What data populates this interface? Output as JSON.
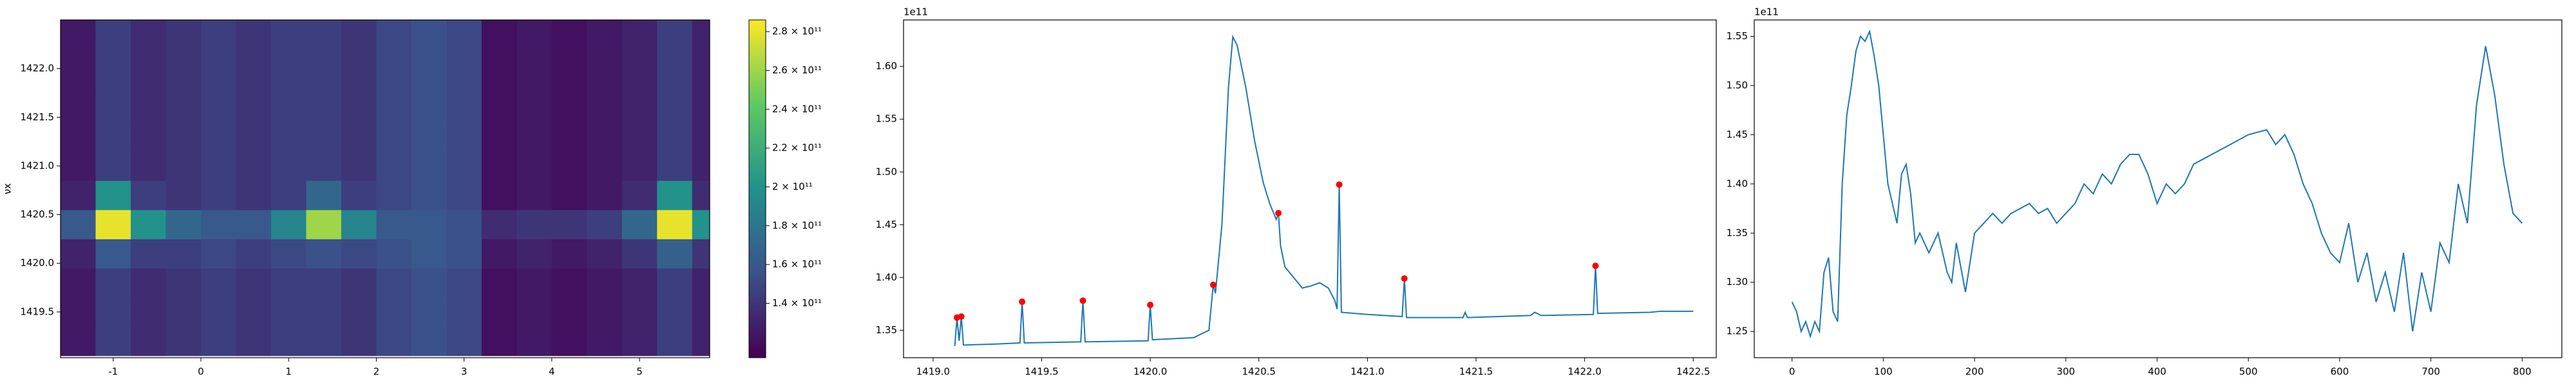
{
  "chart_data": [
    {
      "type": "heatmap",
      "ylabel": "νx",
      "colormap": "viridis",
      "xlim": [
        -1.6,
        5.8
      ],
      "ylim": [
        1419.03,
        1422.5
      ],
      "xticks": [
        -1,
        0,
        1,
        2,
        3,
        4,
        5
      ],
      "yticks": [
        1419.5,
        {
          "value": 1420,
          "label": "1420.0"
        },
        1420.5,
        {
          "value": 1421,
          "label": "1421.0"
        },
        1421.5,
        {
          "value": 1422,
          "label": "1422.0"
        }
      ],
      "x": [
        -1.4,
        -1.0,
        -0.6,
        -0.2,
        0.2,
        0.6,
        1.0,
        1.4,
        1.8,
        2.2,
        2.6,
        3.0,
        3.4,
        3.8,
        4.2,
        4.6,
        5.0,
        5.4,
        5.8
      ],
      "y": [
        1419.2,
        1419.5,
        1419.8,
        1420.1,
        1420.4,
        1420.7,
        1421.0,
        1421.3,
        1421.6,
        1421.9,
        1422.2,
        1422.5
      ],
      "z": [
        [
          125000000000.0,
          145000000000.0,
          135000000000.0,
          140000000000.0,
          145000000000.0,
          140000000000.0,
          145000000000.0,
          145000000000.0,
          140000000000.0,
          150000000000.0,
          155000000000.0,
          150000000000.0,
          120000000000.0,
          125000000000.0,
          120000000000.0,
          125000000000.0,
          130000000000.0,
          145000000000.0,
          130000000000.0
        ],
        [
          125000000000.0,
          145000000000.0,
          135000000000.0,
          140000000000.0,
          145000000000.0,
          140000000000.0,
          145000000000.0,
          145000000000.0,
          140000000000.0,
          150000000000.0,
          155000000000.0,
          150000000000.0,
          120000000000.0,
          125000000000.0,
          120000000000.0,
          125000000000.0,
          130000000000.0,
          145000000000.0,
          130000000000.0
        ],
        [
          125000000000.0,
          145000000000.0,
          135000000000.0,
          140000000000.0,
          145000000000.0,
          140000000000.0,
          145000000000.0,
          145000000000.0,
          140000000000.0,
          150000000000.0,
          155000000000.0,
          150000000000.0,
          120000000000.0,
          125000000000.0,
          120000000000.0,
          125000000000.0,
          130000000000.0,
          145000000000.0,
          130000000000.0
        ],
        [
          130000000000.0,
          160000000000.0,
          145000000000.0,
          145000000000.0,
          150000000000.0,
          145000000000.0,
          150000000000.0,
          155000000000.0,
          150000000000.0,
          155000000000.0,
          160000000000.0,
          155000000000.0,
          125000000000.0,
          130000000000.0,
          125000000000.0,
          130000000000.0,
          140000000000.0,
          165000000000.0,
          140000000000.0
        ],
        [
          160000000000.0,
          280000000000.0,
          200000000000.0,
          170000000000.0,
          160000000000.0,
          160000000000.0,
          190000000000.0,
          260000000000.0,
          190000000000.0,
          160000000000.0,
          160000000000.0,
          155000000000.0,
          135000000000.0,
          140000000000.0,
          140000000000.0,
          145000000000.0,
          170000000000.0,
          280000000000.0,
          200000000000.0
        ],
        [
          130000000000.0,
          200000000000.0,
          145000000000.0,
          140000000000.0,
          145000000000.0,
          140000000000.0,
          145000000000.0,
          170000000000.0,
          145000000000.0,
          150000000000.0,
          155000000000.0,
          150000000000.0,
          120000000000.0,
          125000000000.0,
          120000000000.0,
          125000000000.0,
          135000000000.0,
          200000000000.0,
          135000000000.0
        ],
        [
          125000000000.0,
          145000000000.0,
          135000000000.0,
          140000000000.0,
          145000000000.0,
          140000000000.0,
          145000000000.0,
          145000000000.0,
          140000000000.0,
          150000000000.0,
          155000000000.0,
          150000000000.0,
          120000000000.0,
          125000000000.0,
          120000000000.0,
          125000000000.0,
          130000000000.0,
          145000000000.0,
          130000000000.0
        ],
        [
          125000000000.0,
          145000000000.0,
          135000000000.0,
          140000000000.0,
          145000000000.0,
          140000000000.0,
          145000000000.0,
          145000000000.0,
          140000000000.0,
          150000000000.0,
          155000000000.0,
          150000000000.0,
          120000000000.0,
          125000000000.0,
          120000000000.0,
          125000000000.0,
          130000000000.0,
          145000000000.0,
          130000000000.0
        ],
        [
          125000000000.0,
          145000000000.0,
          135000000000.0,
          140000000000.0,
          145000000000.0,
          140000000000.0,
          145000000000.0,
          145000000000.0,
          140000000000.0,
          150000000000.0,
          155000000000.0,
          150000000000.0,
          120000000000.0,
          125000000000.0,
          120000000000.0,
          125000000000.0,
          130000000000.0,
          145000000000.0,
          130000000000.0
        ],
        [
          125000000000.0,
          145000000000.0,
          135000000000.0,
          140000000000.0,
          145000000000.0,
          140000000000.0,
          145000000000.0,
          145000000000.0,
          140000000000.0,
          150000000000.0,
          155000000000.0,
          150000000000.0,
          120000000000.0,
          125000000000.0,
          120000000000.0,
          125000000000.0,
          130000000000.0,
          145000000000.0,
          130000000000.0
        ],
        [
          125000000000.0,
          145000000000.0,
          135000000000.0,
          140000000000.0,
          145000000000.0,
          140000000000.0,
          145000000000.0,
          145000000000.0,
          140000000000.0,
          150000000000.0,
          155000000000.0,
          150000000000.0,
          120000000000.0,
          125000000000.0,
          120000000000.0,
          125000000000.0,
          130000000000.0,
          145000000000.0,
          130000000000.0
        ],
        [
          125000000000.0,
          145000000000.0,
          135000000000.0,
          140000000000.0,
          145000000000.0,
          140000000000.0,
          145000000000.0,
          145000000000.0,
          140000000000.0,
          150000000000.0,
          155000000000.0,
          150000000000.0,
          120000000000.0,
          125000000000.0,
          120000000000.0,
          125000000000.0,
          130000000000.0,
          145000000000.0,
          130000000000.0
        ]
      ],
      "colorbar": {
        "clim": [
          112000000000.0,
          286000000000.0
        ],
        "ticks": [
          {
            "value": 140000000000.0,
            "label": "1.4 × 10¹¹"
          },
          {
            "value": 160000000000.0,
            "label": "1.6 × 10¹¹"
          },
          {
            "value": 180000000000.0,
            "label": "1.8 × 10¹¹"
          },
          {
            "value": 200000000000.0,
            "label": "2 × 10¹¹"
          },
          {
            "value": 220000000000.0,
            "label": "2.2 × 10¹¹"
          },
          {
            "value": 240000000000.0,
            "label": "2.4 × 10¹¹"
          },
          {
            "value": 260000000000.0,
            "label": "2.6 × 10¹¹"
          },
          {
            "value": 280000000000.0,
            "label": "2.8 × 10¹¹"
          }
        ]
      }
    },
    {
      "type": "line",
      "y_offset": "1e11",
      "xlim": [
        1418.864,
        1422.606
      ],
      "ylim": [
        1.324,
        1.644
      ],
      "xticks": [
        {
          "value": 1419,
          "label": "1419.0"
        },
        1419.5,
        {
          "value": 1420,
          "label": "1420.0"
        },
        1420.5,
        {
          "value": 1421,
          "label": "1421.0"
        },
        1421.5,
        {
          "value": 1422,
          "label": "1422.0"
        },
        1422.5
      ],
      "yticks": [
        1.35,
        {
          "value": 1.4,
          "label": "1.40"
        },
        1.45,
        {
          "value": 1.5,
          "label": "1.50"
        },
        1.55,
        {
          "value": 1.6,
          "label": "1.60"
        }
      ],
      "x": [
        1419.1,
        1419.11,
        1419.12,
        1419.13,
        1419.14,
        1419.3,
        1419.4,
        1419.41,
        1419.42,
        1419.68,
        1419.69,
        1419.7,
        1419.99,
        1420.0,
        1420.01,
        1420.2,
        1420.27,
        1420.29,
        1420.3,
        1420.33,
        1420.36,
        1420.38,
        1420.4,
        1420.44,
        1420.48,
        1420.52,
        1420.55,
        1420.58,
        1420.59,
        1420.6,
        1420.62,
        1420.66,
        1420.7,
        1420.74,
        1420.78,
        1420.82,
        1420.85,
        1420.86,
        1420.87,
        1420.88,
        1421.0,
        1421.16,
        1421.17,
        1421.18,
        1421.44,
        1421.45,
        1421.46,
        1421.75,
        1421.77,
        1421.8,
        1422.04,
        1422.05,
        1422.06,
        1422.3,
        1422.35,
        1422.5
      ],
      "series": [
        {
          "color": "#1f77b4",
          "values": [
            1.335,
            1.362,
            1.34,
            1.363,
            1.336,
            1.337,
            1.338,
            1.377,
            1.338,
            1.339,
            1.378,
            1.339,
            1.34,
            1.374,
            1.341,
            1.343,
            1.35,
            1.393,
            1.385,
            1.45,
            1.58,
            1.628,
            1.62,
            1.58,
            1.53,
            1.49,
            1.47,
            1.455,
            1.461,
            1.43,
            1.41,
            1.4,
            1.39,
            1.392,
            1.395,
            1.39,
            1.378,
            1.37,
            1.488,
            1.367,
            1.365,
            1.363,
            1.399,
            1.362,
            1.362,
            1.367,
            1.362,
            1.364,
            1.367,
            1.364,
            1.365,
            1.411,
            1.366,
            1.367,
            1.368,
            1.368
          ]
        }
      ],
      "markers": {
        "color": "#ff0000",
        "x": [
          1419.11,
          1419.13,
          1419.41,
          1419.69,
          1420.0,
          1420.29,
          1420.59,
          1420.87,
          1421.17,
          1422.05
        ],
        "values": [
          1.362,
          1.363,
          1.377,
          1.378,
          1.374,
          1.393,
          1.461,
          1.488,
          1.399,
          1.411
        ]
      }
    },
    {
      "type": "line",
      "y_offset": "1e11",
      "xlim": [
        -41.4,
        843.5
      ],
      "ylim": [
        1.2233,
        1.5667
      ],
      "xticks": [
        0,
        100,
        200,
        300,
        400,
        500,
        600,
        700,
        800
      ],
      "yticks": [
        1.25,
        {
          "value": 1.3,
          "label": "1.30"
        },
        1.35,
        {
          "value": 1.4,
          "label": "1.40"
        },
        1.45,
        {
          "value": 1.5,
          "label": "1.50"
        },
        1.55
      ],
      "x": [
        0,
        5,
        10,
        15,
        20,
        25,
        30,
        35,
        40,
        45,
        50,
        55,
        60,
        65,
        70,
        75,
        80,
        85,
        90,
        95,
        100,
        105,
        110,
        115,
        120,
        125,
        130,
        135,
        140,
        150,
        160,
        170,
        175,
        180,
        190,
        200,
        210,
        220,
        230,
        240,
        250,
        260,
        270,
        280,
        290,
        300,
        310,
        320,
        330,
        340,
        350,
        360,
        370,
        380,
        390,
        400,
        410,
        420,
        430,
        440,
        460,
        480,
        500,
        520,
        530,
        540,
        550,
        560,
        570,
        580,
        590,
        600,
        610,
        620,
        630,
        640,
        650,
        660,
        670,
        680,
        690,
        700,
        710,
        720,
        730,
        740,
        750,
        760,
        770,
        780,
        790,
        800
      ],
      "series": [
        {
          "color": "#1f77b4",
          "values": [
            1.28,
            1.27,
            1.25,
            1.26,
            1.245,
            1.26,
            1.25,
            1.31,
            1.325,
            1.27,
            1.26,
            1.4,
            1.47,
            1.5,
            1.535,
            1.55,
            1.545,
            1.555,
            1.53,
            1.5,
            1.45,
            1.4,
            1.38,
            1.36,
            1.41,
            1.42,
            1.39,
            1.34,
            1.35,
            1.33,
            1.35,
            1.31,
            1.3,
            1.34,
            1.29,
            1.35,
            1.36,
            1.37,
            1.36,
            1.37,
            1.375,
            1.38,
            1.37,
            1.375,
            1.36,
            1.37,
            1.38,
            1.4,
            1.39,
            1.41,
            1.4,
            1.42,
            1.43,
            1.43,
            1.41,
            1.38,
            1.4,
            1.39,
            1.4,
            1.42,
            1.43,
            1.44,
            1.45,
            1.455,
            1.44,
            1.45,
            1.43,
            1.4,
            1.38,
            1.35,
            1.33,
            1.32,
            1.36,
            1.3,
            1.33,
            1.28,
            1.31,
            1.27,
            1.33,
            1.25,
            1.31,
            1.27,
            1.34,
            1.32,
            1.4,
            1.36,
            1.48,
            1.54,
            1.49,
            1.42,
            1.37,
            1.36
          ]
        }
      ]
    }
  ]
}
